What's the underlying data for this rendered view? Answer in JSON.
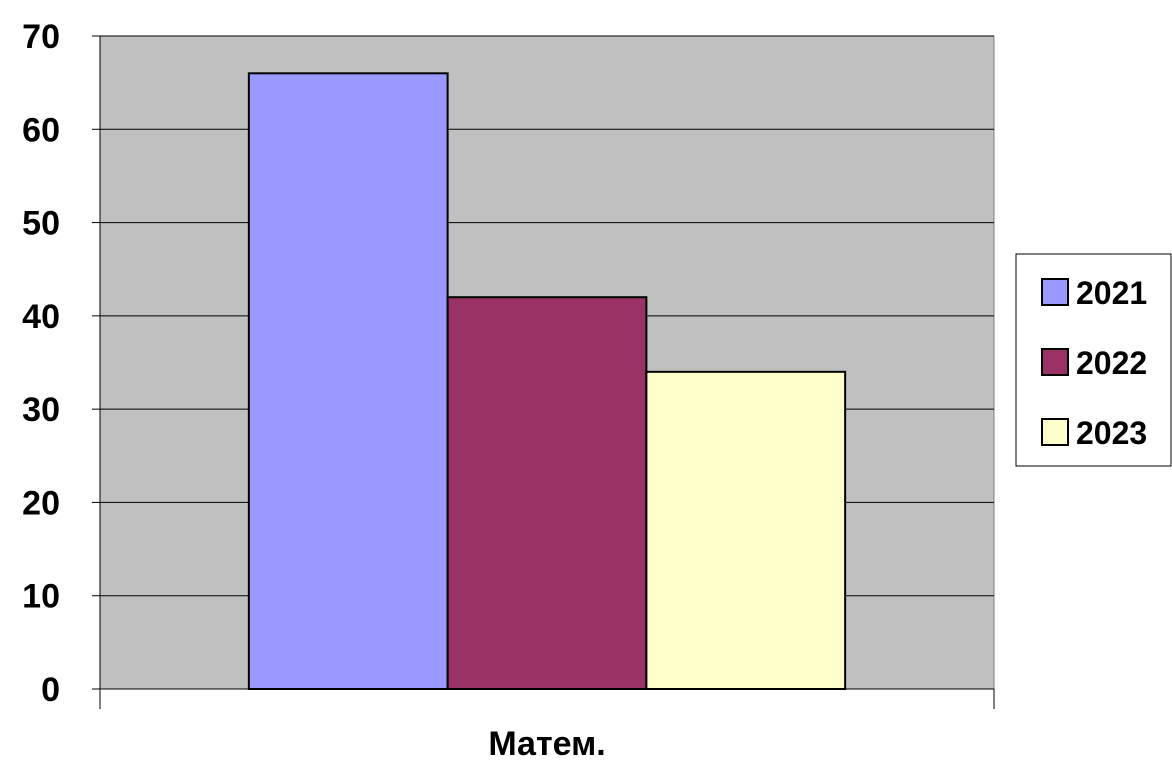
{
  "chart_data": {
    "type": "bar",
    "categories": [
      "Матем."
    ],
    "series": [
      {
        "name": "2021",
        "values": [
          66
        ],
        "color": "#9999FF"
      },
      {
        "name": "2022",
        "values": [
          42
        ],
        "color": "#993366"
      },
      {
        "name": "2023",
        "values": [
          34
        ],
        "color": "#FFFFCC"
      }
    ],
    "ylim": [
      0,
      70
    ],
    "yticks": [
      0,
      10,
      20,
      30,
      40,
      50,
      60,
      70
    ],
    "grid": true,
    "plot_background": "#C0C0C0",
    "legend_position": "right",
    "title": "",
    "xlabel": "",
    "ylabel": ""
  }
}
